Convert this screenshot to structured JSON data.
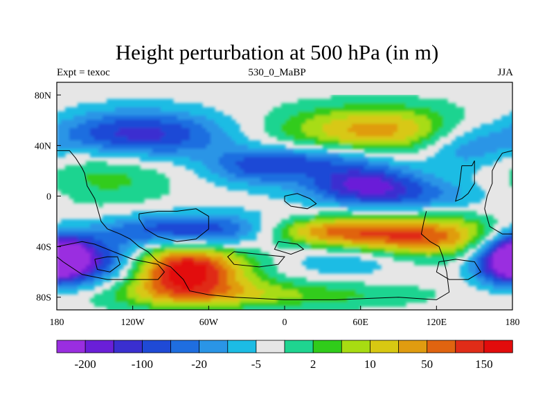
{
  "chart_data": {
    "type": "heatmap",
    "title": "Height perturbation at 500 hPa (in m)",
    "left_label": "Expt = texoc",
    "center_label": "530_0_MaBP",
    "right_label": "JJA",
    "xlim": [
      -180,
      180
    ],
    "ylim": [
      -90,
      90
    ],
    "x_ticks": [
      {
        "value": -180,
        "label": "180"
      },
      {
        "value": -120,
        "label": "120W"
      },
      {
        "value": -60,
        "label": "60W"
      },
      {
        "value": 0,
        "label": "0"
      },
      {
        "value": 60,
        "label": "60E"
      },
      {
        "value": 120,
        "label": "120E"
      },
      {
        "value": 180,
        "label": "180"
      }
    ],
    "y_ticks": [
      {
        "value": 80,
        "label": "80N"
      },
      {
        "value": 40,
        "label": "40N"
      },
      {
        "value": 0,
        "label": "0"
      },
      {
        "value": -40,
        "label": "40S"
      },
      {
        "value": -80,
        "label": "80S"
      }
    ],
    "colorbar": {
      "colors": [
        "#9a2ee0",
        "#6a1fd8",
        "#3a2fd0",
        "#1f4ad6",
        "#1f6ee0",
        "#2a95e6",
        "#1cbce4",
        "#e6e6e6",
        "#1fd490",
        "#30cc1a",
        "#a8dc12",
        "#d8c812",
        "#e09c10",
        "#e06410",
        "#e02c18",
        "#e20c0c"
      ],
      "labels": [
        {
          "boundary": 1,
          "text": "-200"
        },
        {
          "boundary": 3,
          "text": "-100"
        },
        {
          "boundary": 5,
          "text": "-20"
        },
        {
          "boundary": 7,
          "text": "-5"
        },
        {
          "boundary": 9,
          "text": "2"
        },
        {
          "boundary": 11,
          "text": "10"
        },
        {
          "boundary": 13,
          "text": "50"
        },
        {
          "boundary": 15,
          "text": "150"
        }
      ]
    },
    "anomaly_blobs": [
      {
        "lon": -120,
        "lat": 48,
        "sx": 55,
        "sy": 14,
        "amp": -1.0
      },
      {
        "lon": -20,
        "lat": 22,
        "sx": 30,
        "sy": 10,
        "amp": -0.6
      },
      {
        "lon": 30,
        "lat": 30,
        "sx": 40,
        "sy": 8,
        "amp": -0.5
      },
      {
        "lon": 60,
        "lat": 12,
        "sx": 30,
        "sy": 10,
        "amp": -0.8
      },
      {
        "lon": 90,
        "lat": 0,
        "sx": 45,
        "sy": 10,
        "amp": -0.6
      },
      {
        "lon": 140,
        "lat": 40,
        "sx": 25,
        "sy": 14,
        "amp": -0.5
      },
      {
        "lon": -70,
        "lat": -28,
        "sx": 55,
        "sy": 10,
        "amp": -1.0
      },
      {
        "lon": -150,
        "lat": -52,
        "sx": 30,
        "sy": 14,
        "amp": -1.0
      },
      {
        "lon": -175,
        "lat": -45,
        "sx": 15,
        "sy": 14,
        "amp": -0.8
      },
      {
        "lon": 170,
        "lat": -50,
        "sx": 18,
        "sy": 14,
        "amp": -0.8
      },
      {
        "lon": 50,
        "lat": -48,
        "sx": 35,
        "sy": 10,
        "amp": -0.5
      },
      {
        "lon": 75,
        "lat": 52,
        "sx": 60,
        "sy": 14,
        "amp": 0.9
      },
      {
        "lon": -80,
        "lat": -58,
        "sx": 35,
        "sy": 16,
        "amp": 1.5
      },
      {
        "lon": 95,
        "lat": -32,
        "sx": 60,
        "sy": 12,
        "amp": 1.2
      },
      {
        "lon": 20,
        "lat": -28,
        "sx": 35,
        "sy": 8,
        "amp": 0.6
      },
      {
        "lon": -140,
        "lat": 20,
        "sx": 40,
        "sy": 20,
        "amp": 0.4
      },
      {
        "lon": -30,
        "lat": -78,
        "sx": 90,
        "sy": 8,
        "amp": 0.5
      }
    ]
  }
}
